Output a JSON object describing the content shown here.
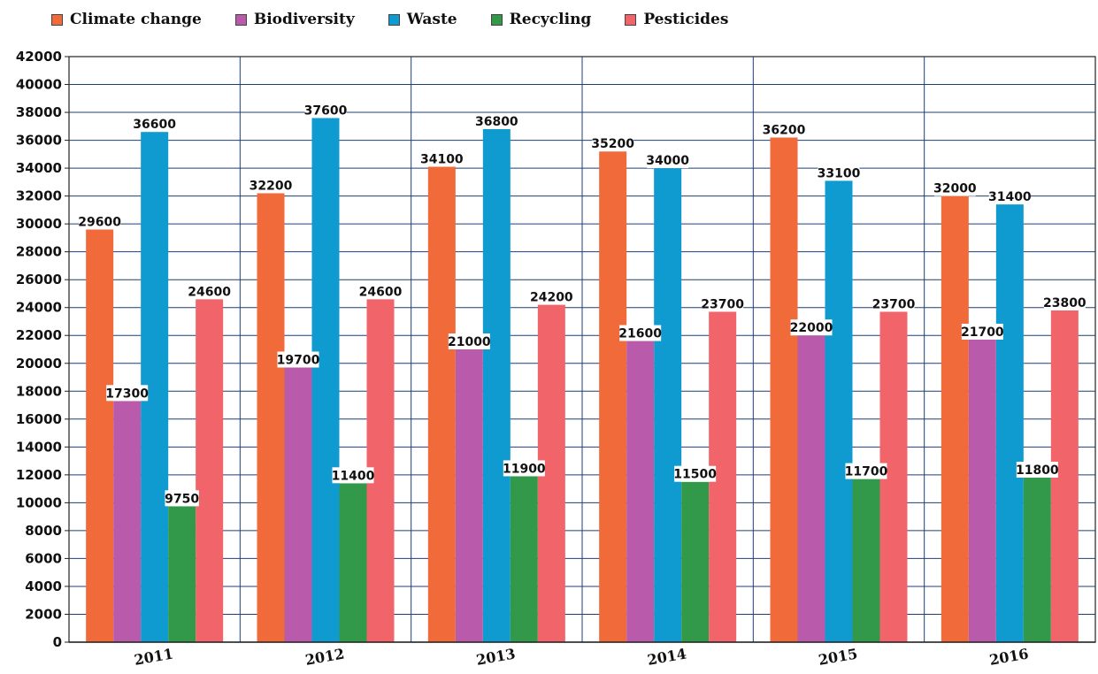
{
  "chart_data": {
    "type": "bar",
    "categories": [
      "2011",
      "2012",
      "2013",
      "2014",
      "2015",
      "2016"
    ],
    "series": [
      {
        "name": "Climate change",
        "color": "#F06A3A",
        "values": [
          29600,
          32200,
          34100,
          35200,
          36200,
          32000
        ]
      },
      {
        "name": "Biodiversity",
        "color": "#B95BAA",
        "values": [
          17300,
          19700,
          21000,
          21600,
          22000,
          21700
        ]
      },
      {
        "name": "Waste",
        "color": "#0F9BCF",
        "values": [
          36600,
          37600,
          36800,
          34000,
          33100,
          31400
        ]
      },
      {
        "name": "Recycling",
        "color": "#33994A",
        "values": [
          9750,
          11400,
          11900,
          11500,
          11700,
          11800
        ]
      },
      {
        "name": "Pesticides",
        "color": "#F0646A",
        "values": [
          24600,
          24600,
          24200,
          23700,
          23700,
          23800
        ]
      }
    ],
    "ylim": [
      0,
      42000
    ],
    "ytick_step": 2000,
    "legend": "top",
    "grid": true,
    "data_labels": true
  }
}
